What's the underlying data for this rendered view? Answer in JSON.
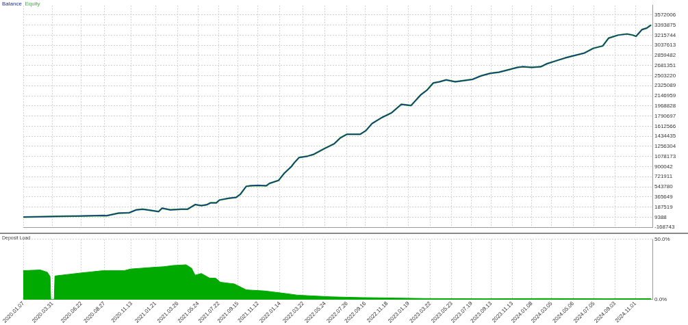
{
  "chart_data": [
    {
      "type": "line",
      "legend": "top left",
      "grid": true,
      "marker": "none",
      "line_style": "solid",
      "tick_labels": "y",
      "xlim": [
        "2020-01-07",
        "2024-12-20"
      ],
      "xticks": [
        {
          "value": "2020-01-07",
          "label": null
        },
        {
          "value": "2020-03-31",
          "label": null
        },
        {
          "value": "2020-06-22",
          "label": null
        },
        {
          "value": "2020-08-27",
          "label": null
        },
        {
          "value": "2020-11-13",
          "label": null
        },
        {
          "value": "2021-01-21",
          "label": null
        },
        {
          "value": "2021-03-26",
          "label": null
        },
        {
          "value": "2021-05-24",
          "label": null
        },
        {
          "value": "2021-07-22",
          "label": null
        },
        {
          "value": "2021-09-15",
          "label": null
        },
        {
          "value": "2021-11-12",
          "label": null
        },
        {
          "value": "2022-01-14",
          "label": null
        },
        {
          "value": "2022-03-22",
          "label": null
        },
        {
          "value": "2022-05-24",
          "label": null
        },
        {
          "value": "2022-07-26",
          "label": null
        },
        {
          "value": "2022-09-16",
          "label": null
        },
        {
          "value": "2022-11-18",
          "label": null
        },
        {
          "value": "2023-01-19",
          "label": null
        },
        {
          "value": "2023-03-22",
          "label": null
        },
        {
          "value": "2023-05-23",
          "label": null
        },
        {
          "value": "2023-07-19",
          "label": null
        },
        {
          "value": "2023-09-13",
          "label": null
        },
        {
          "value": "2023-11-13",
          "label": null
        },
        {
          "value": "2024-01-08",
          "label": null
        },
        {
          "value": "2024-03-05",
          "label": null
        },
        {
          "value": "2024-05-06",
          "label": null
        },
        {
          "value": "2024-07-05",
          "label": null
        },
        {
          "value": "2024-09-03",
          "label": null
        },
        {
          "value": "2024-11-01",
          "label": null
        }
      ],
      "ylim": [
        -168743,
        3740000
      ],
      "yticks": [
        -168743,
        9388,
        187519,
        365649,
        543780,
        721911,
        900042,
        1078173,
        1256304,
        1434435,
        1612566,
        1790697,
        1968828,
        2146959,
        2325089,
        2503220,
        2681351,
        2859482,
        3037613,
        3215744,
        3393875,
        3572006
      ],
      "x": [
        "2020-01-07",
        "2020-05-09",
        "2020-06-15",
        "2020-08-23",
        "2020-09-03",
        "2020-10-07",
        "2020-11-06",
        "2020-11-27",
        "2020-12-15",
        "2021-01-05",
        "2021-01-30",
        "2021-02-09",
        "2021-03-05",
        "2021-04-05",
        "2021-04-23",
        "2021-05-15",
        "2021-06-02",
        "2021-06-17",
        "2021-06-28",
        "2021-07-15",
        "2021-07-24",
        "2021-08-20",
        "2021-09-10",
        "2021-09-22",
        "2021-10-09",
        "2021-10-21",
        "2021-11-12",
        "2021-12-06",
        "2021-12-15",
        "2022-01-10",
        "2022-01-26",
        "2022-02-15",
        "2022-02-24",
        "2022-03-10",
        "2022-04-04",
        "2022-04-20",
        "2022-05-22",
        "2022-06-19",
        "2022-07-07",
        "2022-07-26",
        "2022-08-10",
        "2022-09-02",
        "2022-09-18",
        "2022-10-06",
        "2022-11-03",
        "2022-12-01",
        "2022-12-29",
        "2023-01-26",
        "2023-02-23",
        "2023-03-13",
        "2023-03-31",
        "2023-04-18",
        "2023-05-07",
        "2023-06-02",
        "2023-06-27",
        "2023-07-22",
        "2023-08-16",
        "2023-09-10",
        "2023-10-06",
        "2023-11-02",
        "2023-11-28",
        "2023-12-14",
        "2024-01-08",
        "2024-02-03",
        "2024-02-20",
        "2024-03-18",
        "2024-04-14",
        "2024-05-11",
        "2024-06-07",
        "2024-07-03",
        "2024-07-30",
        "2024-08-16",
        "2024-09-12",
        "2024-10-08",
        "2024-10-25",
        "2024-11-03",
        "2024-11-20",
        "2024-12-04",
        "2024-12-16"
      ],
      "series": [
        {
          "name": "Balance",
          "color": "#1a2e8c",
          "values": [
            10000,
            27000,
            30000,
            37600,
            35000,
            79800,
            86000,
            138600,
            149000,
            132000,
            107000,
            167000,
            138600,
            149000,
            149000,
            230000,
            212000,
            227000,
            261000,
            261000,
            311000,
            342000,
            359000,
            412000,
            552000,
            563000,
            570000,
            563000,
            605000,
            657000,
            780000,
            895000,
            966000,
            1060000,
            1085000,
            1113000,
            1218000,
            1302000,
            1407000,
            1470000,
            1470000,
            1470000,
            1533000,
            1659000,
            1764000,
            1848000,
            1996000,
            1975000,
            2164000,
            2248000,
            2374000,
            2395000,
            2427000,
            2395000,
            2416000,
            2437000,
            2500000,
            2542000,
            2563000,
            2605000,
            2647000,
            2658000,
            2647000,
            2658000,
            2710000,
            2763000,
            2815000,
            2857000,
            2899000,
            2983000,
            3025000,
            3162000,
            3215000,
            3236000,
            3215000,
            3194000,
            3313000,
            3340000,
            3393000
          ]
        },
        {
          "name": "Equity",
          "color": "#2eb82e",
          "values": [
            10000,
            27000,
            30000,
            37600,
            35000,
            79800,
            86000,
            138600,
            149000,
            132000,
            107000,
            167000,
            138600,
            149000,
            149000,
            230000,
            212000,
            227000,
            261000,
            261000,
            311000,
            342000,
            359000,
            412000,
            552000,
            563000,
            570000,
            563000,
            605000,
            657000,
            780000,
            895000,
            966000,
            1060000,
            1085000,
            1113000,
            1218000,
            1302000,
            1407000,
            1470000,
            1470000,
            1470000,
            1533000,
            1659000,
            1764000,
            1848000,
            1996000,
            1975000,
            2164000,
            2248000,
            2374000,
            2395000,
            2427000,
            2395000,
            2416000,
            2437000,
            2500000,
            2542000,
            2563000,
            2605000,
            2647000,
            2658000,
            2647000,
            2658000,
            2710000,
            2763000,
            2815000,
            2857000,
            2899000,
            2983000,
            3025000,
            3162000,
            3215000,
            3236000,
            3215000,
            3194000,
            3313000,
            3340000,
            3393000
          ]
        }
      ]
    },
    {
      "type": "area",
      "title": "Deposit Load",
      "grid": true,
      "marker": "none",
      "xlim": [
        "2020-01-07",
        "2024-12-20"
      ],
      "xticks": [
        {
          "value": "2020-01-07",
          "label": "2020.01.07"
        },
        {
          "value": "2020-03-31",
          "label": "2020.03.31"
        },
        {
          "value": "2020-06-22",
          "label": "2020.06.22"
        },
        {
          "value": "2020-08-27",
          "label": "2020.08.27"
        },
        {
          "value": "2020-11-13",
          "label": "2020.11.13"
        },
        {
          "value": "2021-01-21",
          "label": "2021.01.21"
        },
        {
          "value": "2021-03-26",
          "label": "2021.03.26"
        },
        {
          "value": "2021-05-24",
          "label": "2021.05.24"
        },
        {
          "value": "2021-07-22",
          "label": "2021.07.22"
        },
        {
          "value": "2021-09-15",
          "label": "2021.09.15"
        },
        {
          "value": "2021-11-12",
          "label": "2021.11.12"
        },
        {
          "value": "2022-01-14",
          "label": "2022.01.14"
        },
        {
          "value": "2022-03-22",
          "label": "2022.03.22"
        },
        {
          "value": "2022-05-24",
          "label": "2022.05.24"
        },
        {
          "value": "2022-07-26",
          "label": "2022.07.26"
        },
        {
          "value": "2022-09-16",
          "label": "2022.09.16"
        },
        {
          "value": "2022-11-18",
          "label": "2022.11.18"
        },
        {
          "value": "2023-01-19",
          "label": "2023.01.19"
        },
        {
          "value": "2023-03-22",
          "label": "2023.03.22"
        },
        {
          "value": "2023-05-23",
          "label": "2023.05.23"
        },
        {
          "value": "2023-07-19",
          "label": "2023.07.19"
        },
        {
          "value": "2023-09-13",
          "label": "2023.09.13"
        },
        {
          "value": "2023-11-13",
          "label": "2023.11.13"
        },
        {
          "value": "2024-01-08",
          "label": "2024.01.08"
        },
        {
          "value": "2024-03-05",
          "label": "2024.03.05"
        },
        {
          "value": "2024-05-06",
          "label": "2024.05.06"
        },
        {
          "value": "2024-07-05",
          "label": "2024.07.05"
        },
        {
          "value": "2024-09-03",
          "label": "2024.09.03"
        },
        {
          "value": "2024-11-01",
          "label": "2024.11.01"
        }
      ],
      "ylim": [
        0,
        50
      ],
      "yticks": [
        {
          "value": 0,
          "label": "0.0%"
        },
        {
          "value": 50,
          "label": "50.0%"
        }
      ],
      "x": [
        "2020-01-07",
        "2020-02-25",
        "2020-03-16",
        "2020-03-24",
        "2020-03-26",
        "2020-04-05",
        "2020-04-07",
        "2020-05-09",
        "2020-06-20",
        "2020-08-23",
        "2020-10-23",
        "2020-11-11",
        "2021-01-21",
        "2021-02-14",
        "2021-03-13",
        "2021-04-19",
        "2021-05-05",
        "2021-05-15",
        "2021-06-02",
        "2021-06-26",
        "2021-07-13",
        "2021-07-27",
        "2021-09-05",
        "2021-10-09",
        "2021-12-01",
        "2022-01-26",
        "2022-03-06",
        "2022-06-10",
        "2022-09-02",
        "2022-10-25",
        "2023-03-06",
        "2023-08-24",
        "2024-02-12",
        "2024-08-08",
        "2024-12-16"
      ],
      "series": [
        {
          "color": "#00aa00",
          "values": [
            24.0,
            24.6,
            22.7,
            19.2,
            0,
            0,
            19.6,
            20.7,
            22.1,
            24.0,
            24.0,
            25.4,
            26.9,
            27.3,
            28.3,
            28.9,
            26.0,
            20.2,
            21.7,
            17.8,
            17.8,
            14.4,
            13.0,
            8.1,
            7.2,
            5.2,
            3.7,
            2.3,
            1.7,
            1.5,
            0.9,
            0.7,
            0.9,
            0.7,
            0.8
          ]
        }
      ]
    }
  ]
}
